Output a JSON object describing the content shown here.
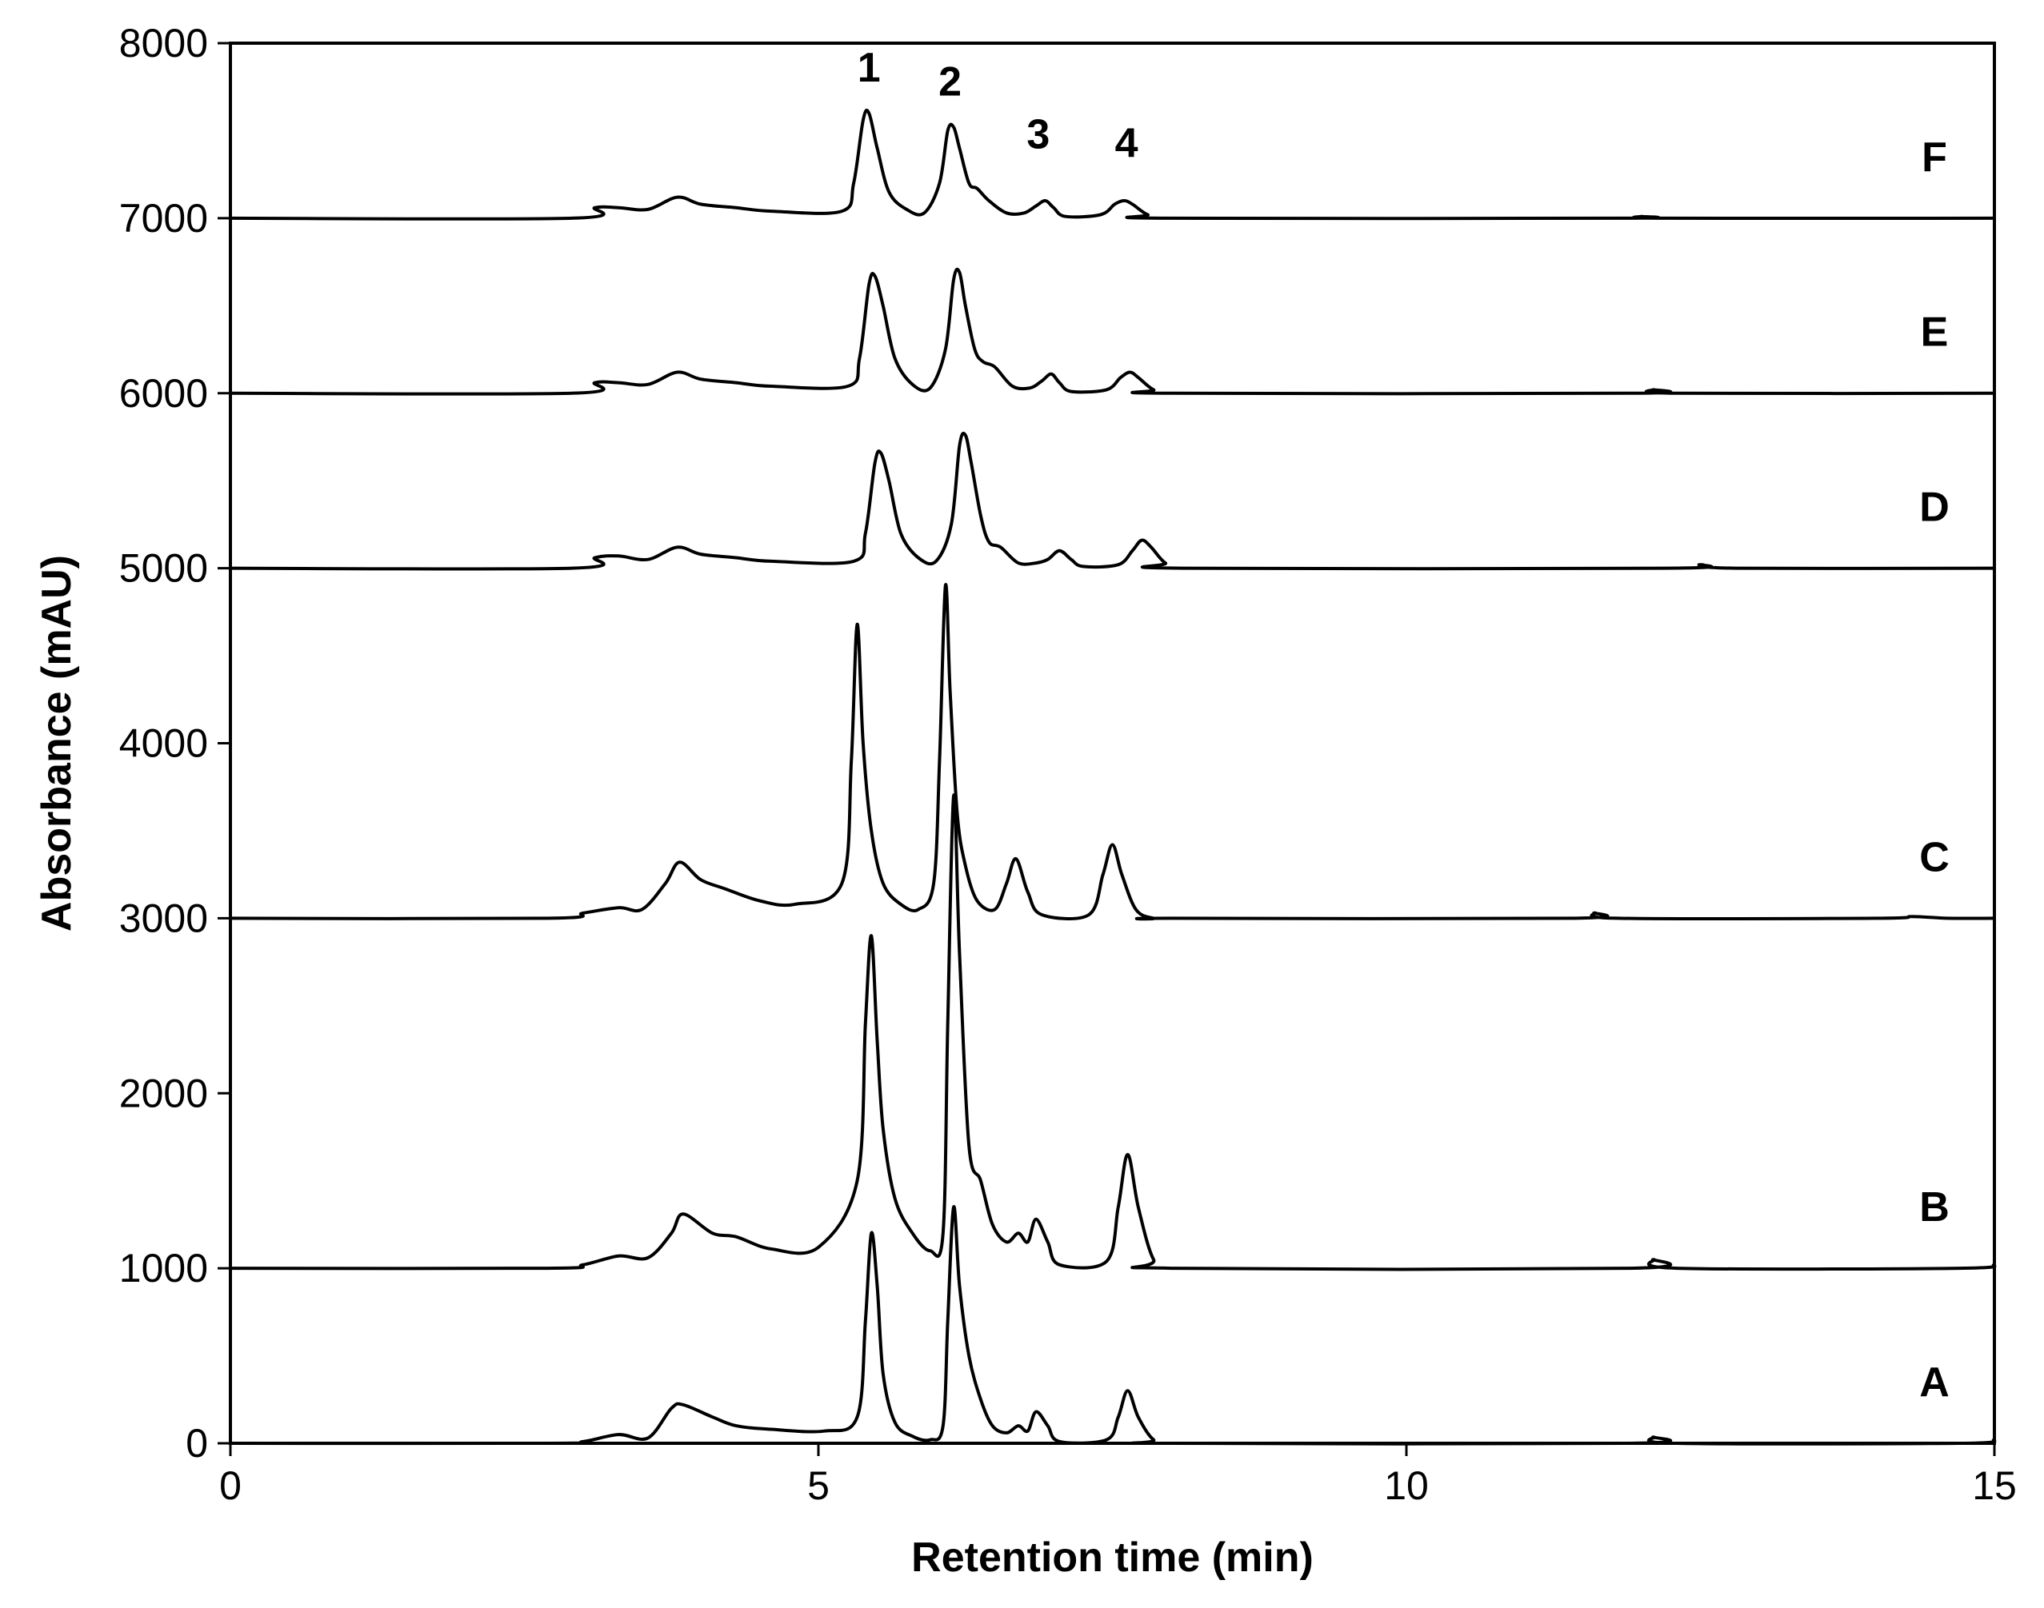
{
  "chart_data": {
    "type": "line",
    "title": "",
    "xlabel": "Retention time (min)",
    "ylabel": "Absorbance (mAU)",
    "xlim": [
      0,
      15
    ],
    "ylim": [
      0,
      8000
    ],
    "xticks": [
      "0",
      "5",
      "10",
      "15"
    ],
    "yticks": [
      "0",
      "1000",
      "2000",
      "3000",
      "4000",
      "5000",
      "6000",
      "7000",
      "8000"
    ],
    "grid": false,
    "legend": "none",
    "peak_labels": [
      {
        "text": "1",
        "x": 5.43,
        "y": 7780
      },
      {
        "text": "2",
        "x": 6.12,
        "y": 7700
      },
      {
        "text": "3",
        "x": 6.87,
        "y": 7400
      },
      {
        "text": "4",
        "x": 7.62,
        "y": 7350
      }
    ],
    "series": [
      {
        "name": "A",
        "baseline": 0,
        "x": [
          0.0,
          2.7,
          3.0,
          3.3,
          3.55,
          3.75,
          3.85,
          4.1,
          4.3,
          4.6,
          5.05,
          5.33,
          5.4,
          5.45,
          5.5,
          5.55,
          5.65,
          5.8,
          5.95,
          6.06,
          6.1,
          6.15,
          6.2,
          6.28,
          6.38,
          6.48,
          6.6,
          6.7,
          6.78,
          6.85,
          6.95,
          7.05,
          7.45,
          7.55,
          7.63,
          7.72,
          7.85,
          8.0,
          11.9,
          12.1,
          12.3,
          14.7,
          15.0
        ],
        "y": [
          0,
          0,
          10,
          50,
          30,
          200,
          220,
          150,
          100,
          80,
          70,
          150,
          700,
          1200,
          900,
          400,
          120,
          40,
          20,
          100,
          700,
          1350,
          900,
          500,
          250,
          100,
          60,
          100,
          70,
          180,
          100,
          10,
          20,
          150,
          300,
          150,
          20,
          0,
          0,
          35,
          0,
          0,
          20
        ]
      },
      {
        "name": "B",
        "baseline": 1000,
        "x": [
          0.0,
          2.7,
          3.0,
          3.3,
          3.55,
          3.75,
          3.85,
          4.1,
          4.3,
          4.6,
          5.0,
          5.33,
          5.4,
          5.45,
          5.5,
          5.55,
          5.65,
          5.8,
          5.95,
          6.06,
          6.1,
          6.15,
          6.2,
          6.28,
          6.38,
          6.48,
          6.6,
          6.7,
          6.78,
          6.85,
          6.95,
          7.05,
          7.45,
          7.55,
          7.63,
          7.72,
          7.85,
          8.0,
          11.9,
          12.1,
          12.3,
          14.7,
          15.0
        ],
        "y": [
          1000,
          1000,
          1020,
          1070,
          1060,
          1200,
          1310,
          1200,
          1180,
          1110,
          1120,
          1500,
          2400,
          2900,
          2300,
          1800,
          1400,
          1200,
          1100,
          1200,
          2400,
          3700,
          2800,
          1700,
          1500,
          1250,
          1150,
          1200,
          1150,
          1280,
          1150,
          1020,
          1040,
          1350,
          1650,
          1350,
          1050,
          1000,
          1000,
          1050,
          1000,
          1000,
          1020
        ]
      },
      {
        "name": "C",
        "baseline": 3000,
        "x": [
          0.0,
          2.7,
          3.0,
          3.3,
          3.5,
          3.7,
          3.82,
          4.0,
          4.2,
          4.5,
          4.8,
          5.2,
          5.28,
          5.33,
          5.38,
          5.45,
          5.55,
          5.7,
          5.85,
          5.98,
          6.03,
          6.08,
          6.12,
          6.18,
          6.25,
          6.35,
          6.5,
          6.6,
          6.68,
          6.78,
          6.9,
          7.3,
          7.42,
          7.5,
          7.58,
          7.7,
          7.85,
          8.0,
          11.4,
          11.6,
          11.8,
          14.0,
          14.3,
          14.6,
          15.0
        ],
        "y": [
          3000,
          3000,
          3030,
          3060,
          3050,
          3200,
          3320,
          3220,
          3170,
          3100,
          3080,
          3200,
          3900,
          4680,
          4000,
          3500,
          3200,
          3080,
          3050,
          3200,
          3900,
          4900,
          4300,
          3600,
          3300,
          3100,
          3050,
          3200,
          3340,
          3150,
          3020,
          3020,
          3250,
          3420,
          3250,
          3050,
          3000,
          3000,
          3000,
          3030,
          3000,
          3000,
          3010,
          3000,
          3000
        ]
      },
      {
        "name": "D",
        "baseline": 5000,
        "x": [
          0.0,
          2.9,
          3.1,
          3.3,
          3.55,
          3.8,
          4.0,
          4.3,
          4.6,
          5.3,
          5.4,
          5.48,
          5.53,
          5.6,
          5.7,
          5.85,
          6.0,
          6.13,
          6.2,
          6.25,
          6.3,
          6.38,
          6.45,
          6.55,
          6.7,
          6.85,
          6.95,
          7.05,
          7.15,
          7.25,
          7.55,
          7.67,
          7.75,
          7.83,
          7.95,
          8.1,
          12.2,
          12.5,
          12.8,
          15.0
        ],
        "y": [
          5000,
          5000,
          5060,
          5070,
          5050,
          5120,
          5080,
          5060,
          5040,
          5040,
          5200,
          5600,
          5660,
          5500,
          5200,
          5060,
          5040,
          5250,
          5700,
          5760,
          5600,
          5300,
          5150,
          5120,
          5030,
          5030,
          5050,
          5100,
          5050,
          5010,
          5020,
          5100,
          5160,
          5120,
          5030,
          5000,
          5000,
          5020,
          5000,
          5000
        ]
      },
      {
        "name": "E",
        "baseline": 6000,
        "x": [
          0.0,
          2.9,
          3.1,
          3.3,
          3.55,
          3.8,
          4.0,
          4.3,
          4.6,
          5.25,
          5.35,
          5.43,
          5.48,
          5.55,
          5.65,
          5.8,
          5.95,
          6.08,
          6.15,
          6.2,
          6.25,
          6.33,
          6.4,
          6.5,
          6.65,
          6.8,
          6.9,
          6.98,
          7.05,
          7.15,
          7.45,
          7.57,
          7.65,
          7.72,
          7.85,
          8.0,
          11.9,
          12.1,
          12.3,
          15.0
        ],
        "y": [
          6000,
          6000,
          6060,
          6060,
          6050,
          6120,
          6080,
          6060,
          6040,
          6040,
          6200,
          6620,
          6670,
          6500,
          6200,
          6050,
          6030,
          6250,
          6650,
          6690,
          6500,
          6250,
          6180,
          6150,
          6040,
          6030,
          6070,
          6110,
          6060,
          6010,
          6020,
          6090,
          6120,
          6090,
          6020,
          6000,
          6000,
          6020,
          6000,
          6000
        ]
      },
      {
        "name": "F",
        "baseline": 7000,
        "x": [
          0.0,
          2.9,
          3.1,
          3.3,
          3.55,
          3.8,
          4.0,
          4.3,
          4.6,
          5.2,
          5.3,
          5.38,
          5.43,
          5.5,
          5.6,
          5.75,
          5.9,
          6.03,
          6.1,
          6.15,
          6.2,
          6.28,
          6.35,
          6.45,
          6.6,
          6.75,
          6.85,
          6.93,
          7.0,
          7.1,
          7.4,
          7.52,
          7.6,
          7.67,
          7.8,
          7.95,
          11.8,
          12.0,
          12.2,
          15.0
        ],
        "y": [
          7000,
          7000,
          7060,
          7060,
          7050,
          7120,
          7080,
          7060,
          7040,
          7040,
          7200,
          7560,
          7600,
          7400,
          7150,
          7050,
          7030,
          7200,
          7500,
          7520,
          7400,
          7200,
          7170,
          7100,
          7030,
          7030,
          7070,
          7100,
          7060,
          7010,
          7020,
          7080,
          7100,
          7080,
          7020,
          7000,
          7000,
          7010,
          7000,
          7000
        ]
      }
    ]
  }
}
